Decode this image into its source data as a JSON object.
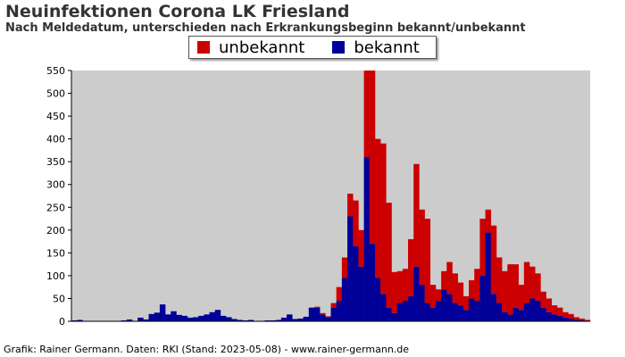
{
  "header": {
    "title": "Neuinfektionen Corona LK Friesland",
    "subtitle": "Nach Meldedatum, unterschieden nach Erkrankungsbeginn bekannt/unbekannt"
  },
  "legend": [
    {
      "label": "unbekannt",
      "color": "#cc0000"
    },
    {
      "label": "bekannt",
      "color": "#000099"
    }
  ],
  "footer": "Grafik: Rainer Germann. Daten: RKI (Stand: 2023-05-08) - www.rainer-germann.de",
  "chart_data": {
    "type": "bar",
    "stacked": true,
    "title": "Neuinfektionen Corona LK Friesland",
    "subtitle": "Nach Meldedatum, unterschieden nach Erkrankungsbeginn bekannt/unbekannt",
    "ylim": [
      0,
      550
    ],
    "yticks": [
      0,
      50,
      100,
      150,
      200,
      250,
      300,
      350,
      400,
      450,
      500,
      550
    ],
    "grid": false,
    "background": "#cccccc",
    "legend_position": "top-center",
    "series_order": [
      "bekannt",
      "unbekannt"
    ],
    "series_colors": {
      "bekannt": "#000099",
      "unbekannt": "#cc0000"
    },
    "series": [
      {
        "name": "bekannt",
        "values": [
          2,
          3,
          1,
          0,
          0,
          1,
          0,
          0,
          0,
          2,
          4,
          1,
          8,
          4,
          16,
          19,
          37,
          15,
          22,
          14,
          12,
          8,
          9,
          12,
          15,
          20,
          25,
          12,
          9,
          5,
          3,
          2,
          3,
          1,
          1,
          2,
          2,
          3,
          8,
          15,
          5,
          6,
          10,
          30,
          30,
          15,
          9,
          30,
          45,
          95,
          230,
          165,
          120,
          360,
          170,
          95,
          60,
          30,
          18,
          40,
          45,
          55,
          120,
          80,
          40,
          30,
          45,
          70,
          60,
          40,
          35,
          25,
          50,
          45,
          100,
          195,
          60,
          40,
          20,
          15,
          30,
          25,
          40,
          50,
          45,
          30,
          20,
          15,
          12,
          8,
          6,
          3,
          2,
          1
        ]
      },
      {
        "name": "unbekannt",
        "values": [
          0,
          0,
          0,
          0,
          0,
          0,
          0,
          0,
          0,
          0,
          0,
          0,
          0,
          0,
          0,
          0,
          0,
          0,
          0,
          0,
          0,
          0,
          0,
          0,
          0,
          0,
          0,
          0,
          0,
          0,
          0,
          0,
          0,
          0,
          0,
          0,
          0,
          0,
          0,
          0,
          0,
          0,
          0,
          0,
          2,
          3,
          2,
          10,
          30,
          45,
          50,
          100,
          80,
          190,
          380,
          305,
          330,
          230,
          90,
          70,
          70,
          125,
          225,
          165,
          185,
          50,
          25,
          40,
          70,
          65,
          50,
          30,
          40,
          70,
          125,
          50,
          150,
          100,
          90,
          110,
          95,
          55,
          90,
          70,
          60,
          35,
          30,
          20,
          18,
          12,
          10,
          6,
          4,
          2
        ]
      }
    ]
  }
}
